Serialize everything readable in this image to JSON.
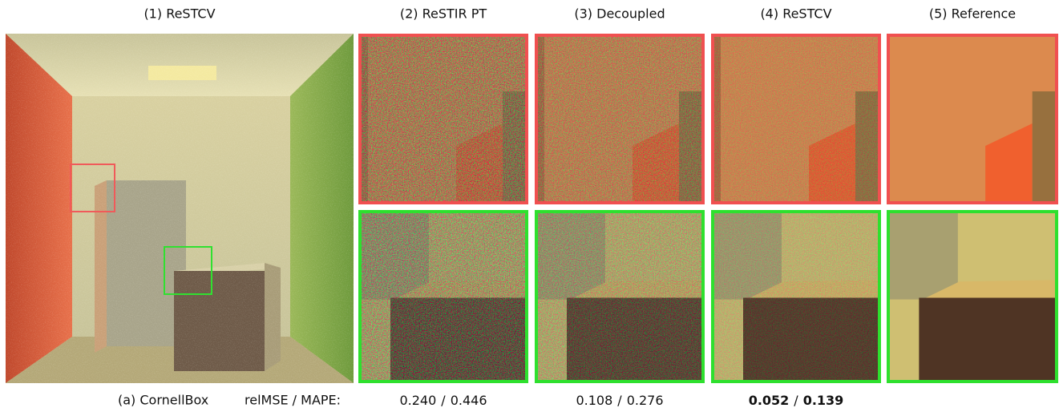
{
  "headers": [
    "(1) ReSTCV",
    "(2) ReSTIR PT",
    "(3) Decoupled",
    "(4) ReSTCV",
    "(5) Reference"
  ],
  "caption": {
    "scene": "(a) CornellBox",
    "metric_label": "relMSE / MAPE:",
    "separator": "/"
  },
  "metrics": [
    {
      "relmse": "0.240",
      "mape": "0.446",
      "bold": false
    },
    {
      "relmse": "0.108",
      "mape": "0.276",
      "bold": false
    },
    {
      "relmse": "0.052",
      "mape": "0.139",
      "bold": true
    }
  ]
}
